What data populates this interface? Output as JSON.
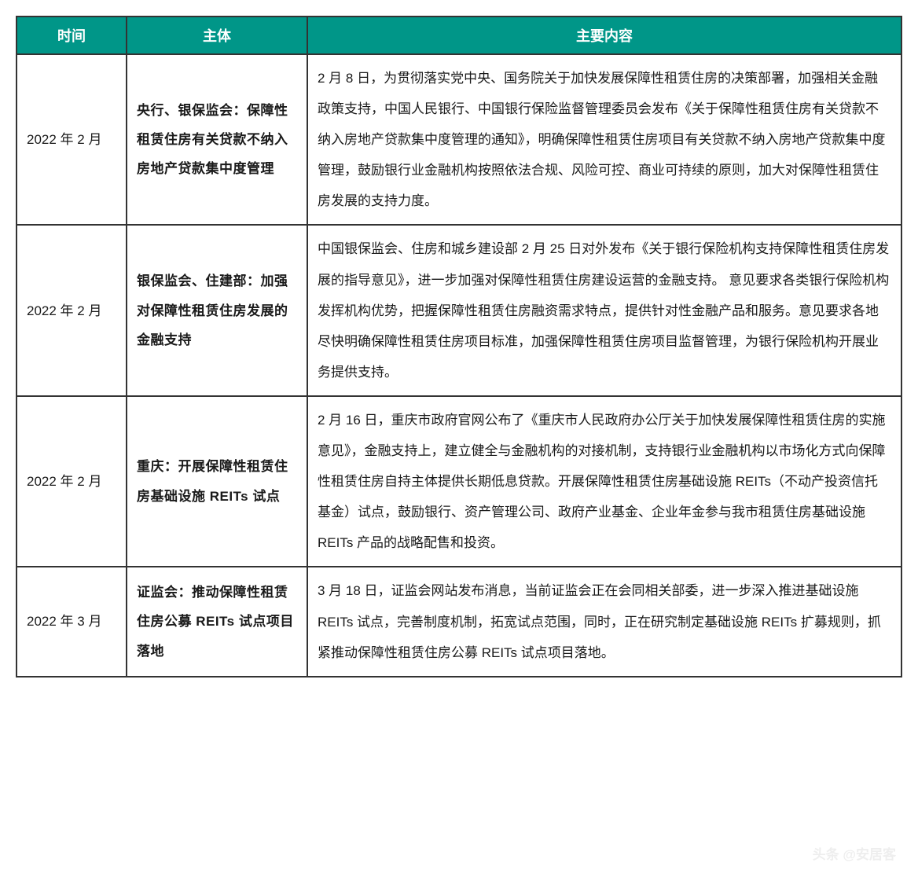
{
  "table": {
    "header_bg": "#009688",
    "header_fg": "#ffffff",
    "border_color": "#333333",
    "columns": [
      {
        "key": "time",
        "label": "时间"
      },
      {
        "key": "subject",
        "label": "主体"
      },
      {
        "key": "content",
        "label": "主要内容"
      }
    ],
    "rows": [
      {
        "time": "2022 年 2 月",
        "subject": "央行、银保监会：保障性租赁住房有关贷款不纳入房地产贷款集中度管理",
        "content": "2 月 8 日，为贯彻落实党中央、国务院关于加快发展保障性租赁住房的决策部署，加强相关金融政策支持，中国人民银行、中国银行保险监督管理委员会发布《关于保障性租赁住房有关贷款不纳入房地产贷款集中度管理的通知》，明确保障性租赁住房项目有关贷款不纳入房地产贷款集中度管理，鼓励银行业金融机构按照依法合规、风险可控、商业可持续的原则，加大对保障性租赁住房发展的支持力度。"
      },
      {
        "time": "2022 年 2 月",
        "subject": "银保监会、住建部：加强对保障性租赁住房发展的金融支持",
        "content": "中国银保监会、住房和城乡建设部 2 月 25 日对外发布《关于银行保险机构支持保障性租赁住房发展的指导意见》，进一步加强对保障性租赁住房建设运营的金融支持。\n意见要求各类银行保险机构发挥机构优势，把握保障性租赁住房融资需求特点，提供针对性金融产品和服务。意见要求各地尽快明确保障性租赁住房项目标准，加强保障性租赁住房项目监督管理，为银行保险机构开展业务提供支持。"
      },
      {
        "time": "2022 年 2 月",
        "subject": "重庆：开展保障性租赁住房基础设施 REITs 试点",
        "content": "2 月 16 日，重庆市政府官网公布了《重庆市人民政府办公厅关于加快发展保障性租赁住房的实施意见》，金融支持上，建立健全与金融机构的对接机制，支持银行业金融机构以市场化方式向保障性租赁住房自持主体提供长期低息贷款。开展保障性租赁住房基础设施 REITs（不动产投资信托基金）试点，鼓励银行、资产管理公司、政府产业基金、企业年金参与我市租赁住房基础设施 REITs 产品的战略配售和投资。"
      },
      {
        "time": "2022 年 3 月",
        "subject": "证监会：推动保障性租赁住房公募 REITs 试点项目落地",
        "content": "3 月 18 日，证监会网站发布消息，当前证监会正在会同相关部委，进一步深入推进基础设施 REITs 试点，完善制度机制，拓宽试点范围，同时，正在研究制定基础设施 REITs 扩募规则，抓紧推动保障性租赁住房公募 REITs 试点项目落地。"
      }
    ]
  },
  "watermark": "头条 @安居客"
}
